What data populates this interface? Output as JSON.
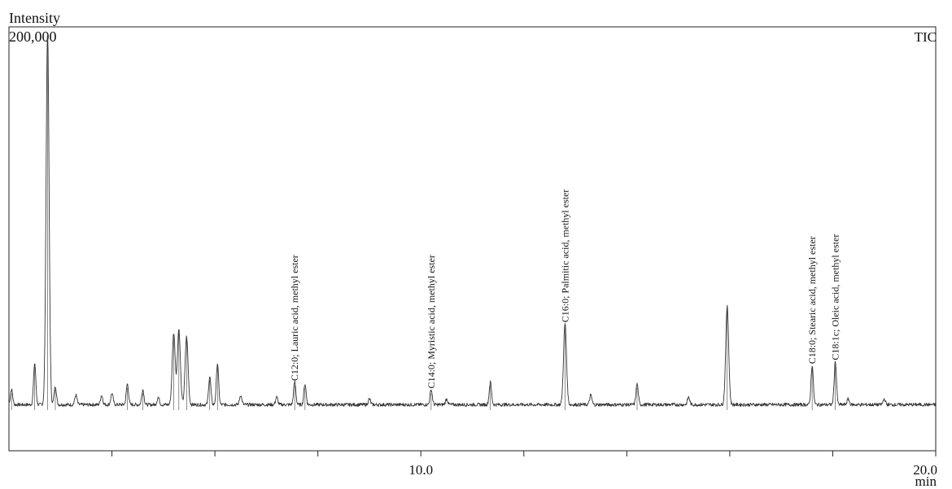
{
  "chart_data": {
    "type": "line",
    "y_axis_label": "Intensity",
    "y_max_label": "200,000",
    "trace_label": "TIC",
    "x_unit": "min",
    "xlim": [
      2.0,
      20.0
    ],
    "ylim": [
      0,
      200000
    ],
    "x_tick_labels": [
      {
        "x": 10.0,
        "label": "10.0"
      },
      {
        "x": 20.0,
        "label": "20.0"
      }
    ],
    "x_minor_ticks": [
      4.0,
      6.0,
      8.0,
      10.0,
      12.0,
      14.0,
      16.0,
      18.0,
      20.0
    ],
    "baseline": 2000,
    "peaks": [
      {
        "x": 2.05,
        "y": 8000
      },
      {
        "x": 2.5,
        "y": 22000
      },
      {
        "x": 2.75,
        "y": 198000
      },
      {
        "x": 2.9,
        "y": 10000
      },
      {
        "x": 3.3,
        "y": 5000
      },
      {
        "x": 3.8,
        "y": 5000
      },
      {
        "x": 4.0,
        "y": 6000
      },
      {
        "x": 4.3,
        "y": 11000
      },
      {
        "x": 4.6,
        "y": 8000
      },
      {
        "x": 4.9,
        "y": 4000
      },
      {
        "x": 5.2,
        "y": 38000
      },
      {
        "x": 5.3,
        "y": 40000
      },
      {
        "x": 5.45,
        "y": 36000
      },
      {
        "x": 5.9,
        "y": 15000
      },
      {
        "x": 6.05,
        "y": 22000
      },
      {
        "x": 6.5,
        "y": 5000
      },
      {
        "x": 7.2,
        "y": 4000
      },
      {
        "x": 7.55,
        "y": 12000,
        "label": "C12:0; Lauric acid, methyl ester"
      },
      {
        "x": 7.75,
        "y": 11000
      },
      {
        "x": 9.0,
        "y": 3000
      },
      {
        "x": 10.2,
        "y": 8000,
        "label": "C14:0; Myristic acid, methyl ester"
      },
      {
        "x": 10.5,
        "y": 3000
      },
      {
        "x": 11.35,
        "y": 12000
      },
      {
        "x": 12.8,
        "y": 43000,
        "label": "C16:0; Palmitic acid, methyl ester"
      },
      {
        "x": 13.3,
        "y": 5000
      },
      {
        "x": 14.2,
        "y": 11000
      },
      {
        "x": 15.2,
        "y": 4000
      },
      {
        "x": 15.95,
        "y": 52000
      },
      {
        "x": 17.6,
        "y": 21000,
        "label": "C18:0; Stearic acid, methyl ester"
      },
      {
        "x": 18.05,
        "y": 23000,
        "label": "C18:1c; Oleic acid, methyl ester"
      },
      {
        "x": 18.3,
        "y": 3000
      },
      {
        "x": 19.0,
        "y": 3000
      }
    ]
  }
}
